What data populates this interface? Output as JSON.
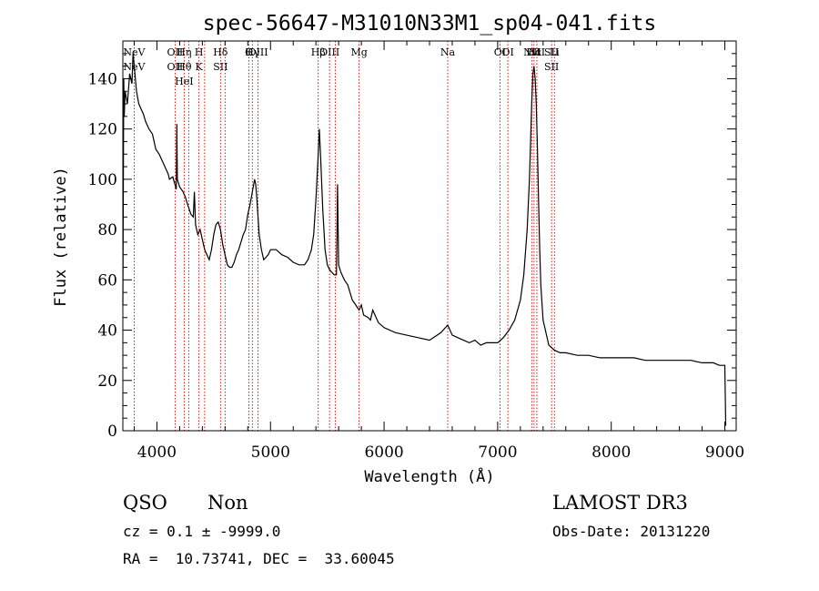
{
  "chart_data": {
    "type": "line",
    "title": "spec-56647-M31010N33M1_sp04-041.fits",
    "xlabel": "Wavelength (Å)",
    "ylabel": "Flux (relative)",
    "xlim": [
      3700,
      9100
    ],
    "ylim": [
      0,
      155
    ],
    "xticks": [
      4000,
      5000,
      6000,
      7000,
      8000,
      9000
    ],
    "yticks": [
      0,
      20,
      40,
      60,
      80,
      100,
      120,
      140
    ],
    "grid": false,
    "series": [
      {
        "x": [
          3700,
          3708,
          3712,
          3720,
          3740,
          3760,
          3780,
          3790,
          3800,
          3820,
          3840,
          3860,
          3880,
          3900,
          3930,
          3960,
          3990,
          4020,
          4050,
          4080,
          4100,
          4110,
          4140,
          4170,
          4175,
          4180,
          4200,
          4230,
          4250,
          4270,
          4300,
          4320,
          4330,
          4340,
          4350,
          4360,
          4380,
          4400,
          4420,
          4440,
          4460,
          4480,
          4500,
          4520,
          4540,
          4560,
          4580,
          4600,
          4620,
          4640,
          4660,
          4680,
          4700,
          4720,
          4740,
          4760,
          4780,
          4800,
          4820,
          4840,
          4860,
          4870,
          4880,
          4900,
          4920,
          4940,
          4960,
          4980,
          5000,
          5050,
          5100,
          5150,
          5200,
          5250,
          5300,
          5330,
          5360,
          5380,
          5400,
          5420,
          5430,
          5440,
          5460,
          5480,
          5500,
          5520,
          5540,
          5560,
          5580,
          5590,
          5600,
          5620,
          5650,
          5680,
          5700,
          5720,
          5750,
          5780,
          5800,
          5820,
          5860,
          5880,
          5900,
          5950,
          6000,
          6100,
          6200,
          6300,
          6400,
          6500,
          6560,
          6600,
          6700,
          6750,
          6800,
          6850,
          6900,
          7000,
          7050,
          7100,
          7150,
          7200,
          7230,
          7260,
          7280,
          7300,
          7310,
          7320,
          7330,
          7340,
          7350,
          7360,
          7370,
          7380,
          7400,
          7420,
          7450,
          7500,
          7550,
          7600,
          7700,
          7800,
          7900,
          8000,
          8100,
          8200,
          8300,
          8400,
          8500,
          8600,
          8700,
          8800,
          8900,
          8950,
          9000,
          9005,
          9008
        ],
        "y": [
          50,
          140,
          125,
          135,
          130,
          142,
          138,
          150,
          145,
          135,
          130,
          128,
          126,
          123,
          120,
          118,
          112,
          110,
          107,
          104,
          102,
          100,
          101,
          96,
          122,
          100,
          97,
          95,
          93,
          90,
          86,
          85,
          95,
          82,
          80,
          78,
          80,
          76,
          72,
          70,
          68,
          72,
          78,
          82,
          83,
          80,
          74,
          70,
          66,
          65,
          65,
          67,
          70,
          72,
          75,
          78,
          80,
          86,
          90,
          95,
          100,
          98,
          92,
          78,
          72,
          68,
          69,
          70,
          72,
          72,
          70,
          69,
          67,
          66,
          66,
          68,
          72,
          78,
          92,
          110,
          120,
          110,
          88,
          72,
          66,
          64,
          63,
          62,
          62,
          98,
          66,
          63,
          60,
          58,
          55,
          52,
          50,
          48,
          50,
          46,
          45,
          44,
          48,
          43,
          41,
          39,
          38,
          37,
          36,
          39,
          42,
          38,
          36,
          35,
          36,
          34,
          35,
          35,
          37,
          40,
          44,
          52,
          62,
          80,
          100,
          130,
          142,
          145,
          140,
          130,
          112,
          92,
          72,
          58,
          44,
          40,
          34,
          32,
          31,
          31,
          30,
          30,
          29,
          29,
          29,
          29,
          28,
          28,
          28,
          28,
          28,
          27,
          27,
          26,
          26,
          12,
          2
        ]
      }
    ],
    "lines": [
      {
        "x": 3800,
        "labels": [
          "NeV",
          "NeV"
        ]
      },
      {
        "x": 4160,
        "labels": [
          "OII",
          "OII"
        ]
      },
      {
        "x": 4240,
        "labels": [
          "Hη",
          "Hθ",
          "HeI"
        ]
      },
      {
        "x": 4280,
        "labels": []
      },
      {
        "x": 4370,
        "labels": [
          "H",
          "K"
        ]
      },
      {
        "x": 4420,
        "labels": []
      },
      {
        "x": 4560,
        "labels": [
          "Hδ",
          "SII"
        ]
      },
      {
        "x": 4600,
        "labels": []
      },
      {
        "x": 4810,
        "labels": [
          "G"
        ]
      },
      {
        "x": 4840,
        "labels": [
          "Hγ"
        ]
      },
      {
        "x": 4890,
        "labels": [
          "OIII"
        ]
      },
      {
        "x": 5420,
        "labels": [
          "Hβ"
        ]
      },
      {
        "x": 5520,
        "labels": [
          "OIII"
        ]
      },
      {
        "x": 5570,
        "labels": []
      },
      {
        "x": 5780,
        "labels": [
          "Mg"
        ]
      },
      {
        "x": 6560,
        "labels": [
          "Na"
        ]
      },
      {
        "x": 7020,
        "labels": [
          "OI"
        ]
      },
      {
        "x": 7090,
        "labels": [
          "OI"
        ]
      },
      {
        "x": 7300,
        "labels": [
          "NII"
        ]
      },
      {
        "x": 7320,
        "labels": [
          "Hα"
        ]
      },
      {
        "x": 7345,
        "labels": [
          "NII"
        ]
      },
      {
        "x": 7475,
        "labels": [
          "SII",
          "SII"
        ]
      },
      {
        "x": 7500,
        "labels": [
          "Li"
        ]
      }
    ]
  },
  "footer": {
    "class_label": "QSO",
    "subclass_label": "Non",
    "survey": "LAMOST DR3",
    "cz_line": "cz = 0.1 ± -9999.0",
    "obs_date": "Obs-Date: 20131220",
    "radec_line": "RA =  10.73741, DEC =  33.60045"
  },
  "colors": {
    "spectrum": "#000000",
    "line_marker": "#cc0000"
  }
}
